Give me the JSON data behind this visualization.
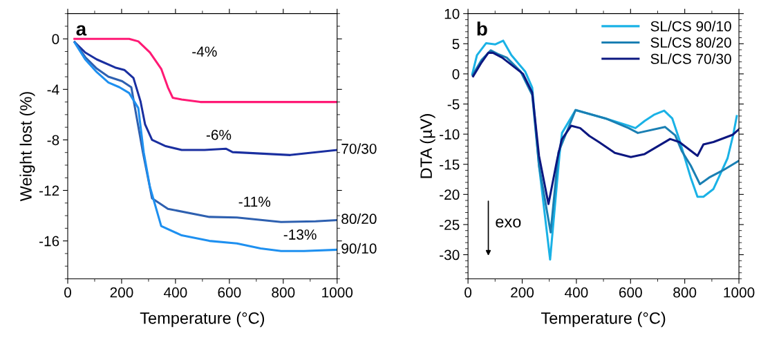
{
  "chart_data": [
    {
      "type": "line",
      "xlabel": "Temperature (°C)",
      "ylabel": "Weight lost (%)",
      "xlim": [
        0,
        1000
      ],
      "ylim": [
        -19,
        2
      ],
      "xticks": [
        0,
        200,
        400,
        600,
        800,
        1000
      ],
      "yticks": [
        -16,
        -12,
        -8,
        -4,
        0
      ],
      "grid": false,
      "legend": false,
      "annotations": [
        "a",
        "-4%",
        "-6%",
        "-11%",
        "-13%"
      ],
      "series": [
        {
          "color": "#ff1a75",
          "x": [
            25,
            100,
            228,
            262,
            305,
            347,
            372,
            390,
            423,
            492,
            700,
            1000
          ],
          "values": [
            0,
            0,
            0,
            -0.2,
            -1.08,
            -2.37,
            -3.85,
            -4.67,
            -4.8,
            -5.0,
            -5.0,
            -5.0
          ]
        },
        {
          "name": "70/30",
          "color": "#1a2fa0",
          "x": [
            26,
            65,
            108,
            176,
            210,
            244,
            270,
            287,
            313,
            364,
            423,
            508,
            587,
            612,
            826,
            1000
          ],
          "values": [
            -0.26,
            -1.08,
            -1.63,
            -2.27,
            -2.46,
            -3.1,
            -4.93,
            -6.76,
            -8.0,
            -8.5,
            -8.8,
            -8.8,
            -8.7,
            -8.97,
            -9.2,
            -8.8
          ]
        },
        {
          "name": "80/20",
          "color": "#2e60b0",
          "x": [
            26,
            65,
            108,
            151,
            202,
            236,
            279,
            313,
            372,
            526,
            628,
            792,
            920,
            1000
          ],
          "values": [
            -0.26,
            -1.45,
            -2.36,
            -3.0,
            -3.35,
            -3.83,
            -8.97,
            -12.63,
            -13.46,
            -14.1,
            -14.15,
            -14.5,
            -14.45,
            -14.35
          ]
        },
        {
          "name": "90/10",
          "color": "#1e90f0",
          "x": [
            26,
            65,
            108,
            151,
            192,
            228,
            262,
            282,
            305,
            347,
            423,
            526,
            628,
            716,
            792,
            877,
            1000
          ],
          "values": [
            -0.3,
            -1.63,
            -2.64,
            -3.46,
            -3.83,
            -4.29,
            -5.48,
            -8.97,
            -11.71,
            -14.82,
            -15.56,
            -16.0,
            -16.2,
            -16.6,
            -16.8,
            -16.8,
            -16.7
          ]
        }
      ]
    },
    {
      "type": "line",
      "xlabel": "Temperature (°C)",
      "ylabel": "DTA (µV)",
      "xlim": [
        0,
        1000
      ],
      "ylim": [
        -34,
        10
      ],
      "xticks": [
        0,
        200,
        400,
        600,
        800,
        1000
      ],
      "yticks": [
        -30,
        -25,
        -20,
        -15,
        -10,
        -5,
        0,
        5,
        10
      ],
      "grid": false,
      "legend": "top right",
      "annotations": [
        "b",
        "exo"
      ],
      "series": [
        {
          "name": "SL/CS 90/10",
          "color": "#1ab2e6",
          "x": [
            16,
            33,
            67,
            101,
            130,
            160,
            211,
            237,
            262,
            303,
            338,
            347,
            397,
            508,
            593,
            618,
            652,
            686,
            724,
            754,
            780,
            822,
            847,
            869,
            906,
            958,
            979,
            992
          ],
          "values": [
            0,
            3.1,
            5.1,
            4.9,
            5.5,
            3.1,
            0.4,
            -2.3,
            -15.2,
            -30.8,
            -13.3,
            -9.8,
            -6.0,
            -7.4,
            -8.6,
            -9.0,
            -7.8,
            -6.8,
            -6.1,
            -7.4,
            -10.9,
            -17.2,
            -20.4,
            -20.4,
            -19.1,
            -14.0,
            -10.1,
            -7.0
          ]
        },
        {
          "name": "SL/CS 80/20",
          "color": "#1a7fb3",
          "x": [
            17,
            50,
            84,
            110,
            143,
            194,
            237,
            262,
            305,
            334,
            397,
            508,
            593,
            627,
            727,
            765,
            789,
            822,
            856,
            890,
            941,
            1000
          ],
          "values": [
            -0.2,
            2.3,
            3.9,
            3.3,
            2.7,
            0.4,
            -3.5,
            -15.2,
            -26.3,
            -13.0,
            -6.0,
            -7.4,
            -9.0,
            -9.8,
            -8.8,
            -10.2,
            -12.8,
            -15.2,
            -18.3,
            -17.2,
            -16.0,
            -14.4
          ]
        },
        {
          "name": "SL/CS 70/30",
          "color": "#0c1780",
          "x": [
            19,
            50,
            75,
            92,
            126,
            203,
            237,
            262,
            297,
            330,
            346,
            381,
            414,
            448,
            483,
            542,
            601,
            652,
            746,
            780,
            847,
            869,
            906,
            977,
            1000
          ],
          "values": [
            -0.4,
            1.9,
            3.5,
            3.5,
            2.7,
            0,
            -3.1,
            -13.6,
            -21.6,
            -14.0,
            -10.9,
            -8.6,
            -9.0,
            -10.3,
            -11.3,
            -13.1,
            -13.8,
            -13.3,
            -10.8,
            -11.3,
            -13.6,
            -11.7,
            -11.3,
            -10.1,
            -9.2
          ]
        }
      ]
    }
  ]
}
